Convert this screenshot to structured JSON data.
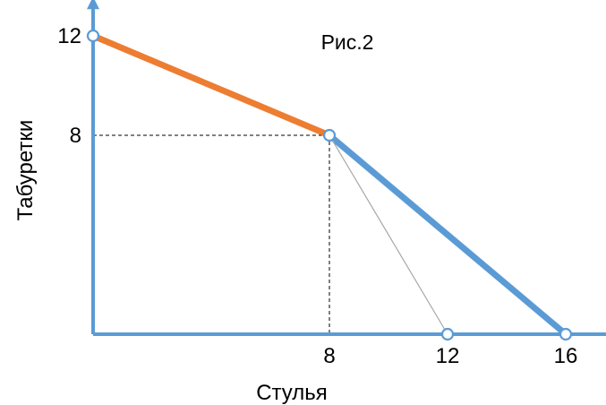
{
  "chart_data": {
    "type": "line",
    "title": "Рис.2",
    "xlabel": "Стулья",
    "ylabel": "Табуретки",
    "xlim": [
      0,
      20
    ],
    "ylim": [
      0,
      13
    ],
    "x_ticks": [
      8,
      12,
      16
    ],
    "y_ticks": [
      8,
      12
    ],
    "x_tick_labels": [
      "8",
      "12",
      "16"
    ],
    "y_tick_labels": [
      "8",
      "12"
    ],
    "grid": false,
    "series": [
      {
        "color": "#ED7D31",
        "points": [
          [
            0,
            12
          ],
          [
            8,
            8
          ]
        ]
      },
      {
        "color": "#5B9BD5",
        "points": [
          [
            8,
            8
          ],
          [
            16,
            0
          ]
        ]
      },
      {
        "color": "#A6A6A6",
        "points": [
          [
            8,
            8
          ],
          [
            12,
            0
          ]
        ]
      }
    ],
    "guides": [
      {
        "type": "dashed",
        "from": [
          0,
          8
        ],
        "to": [
          8,
          8
        ]
      },
      {
        "type": "dashed",
        "from": [
          8,
          8
        ],
        "to": [
          8,
          0
        ]
      }
    ],
    "markers": [
      [
        0,
        12
      ],
      [
        8,
        8
      ],
      [
        12,
        0
      ],
      [
        16,
        0
      ]
    ],
    "colors": {
      "axis": "#5B9BD5",
      "orange": "#ED7D31",
      "blue": "#5B9BD5",
      "gray": "#A6A6A6",
      "text": "#000000"
    }
  }
}
